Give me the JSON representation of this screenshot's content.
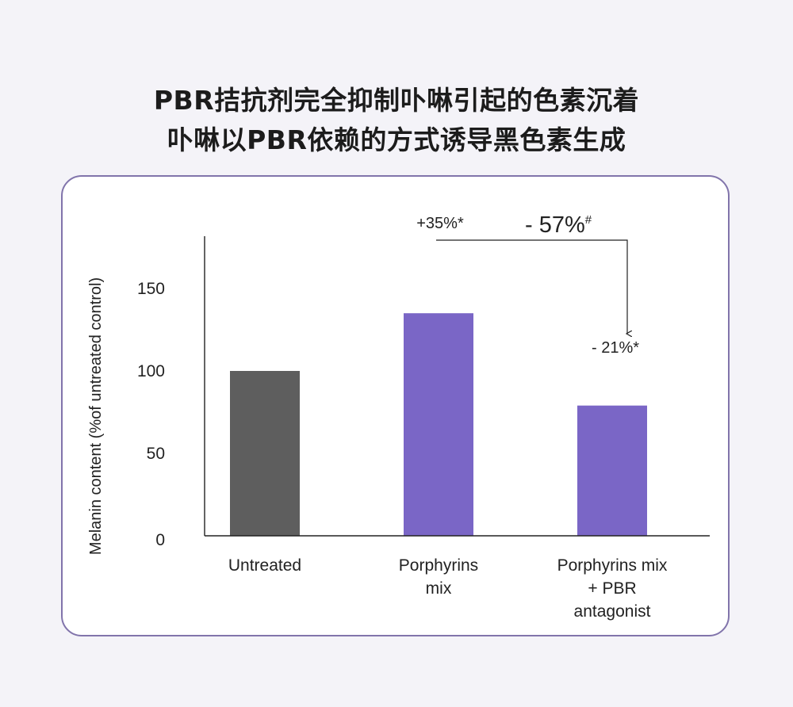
{
  "titles": {
    "line1": "PBR拮抗剂完全抑制卟啉引起的色素沉着",
    "line2": "卟啉以PBR依赖的方式诱导黑色素生成"
  },
  "colors": {
    "card_border": "#8174ab",
    "bar_control": "#5e5e5e",
    "bar_treated": "#7a66c6",
    "background": "#f4f3f8"
  },
  "chart_data": {
    "type": "bar",
    "title": "",
    "xlabel": "",
    "ylabel": "Melanin content  (%of untreated control)",
    "ylim": [
      0,
      180
    ],
    "yticks": [
      0,
      50,
      100,
      150
    ],
    "grid": false,
    "categories": [
      [
        "Untreated"
      ],
      [
        "Porphyrins",
        "mix"
      ],
      [
        "Porphyrins mix",
        "+ PBR",
        "antagonist"
      ]
    ],
    "values": [
      100,
      135,
      79
    ],
    "bar_colors": [
      "#5e5e5e",
      "#7a66c6",
      "#7a66c6"
    ],
    "annotations": {
      "bar2": "+35%*",
      "bar3": "- 21%*",
      "comparison": "- 57%",
      "comparison_sup": "#"
    }
  }
}
